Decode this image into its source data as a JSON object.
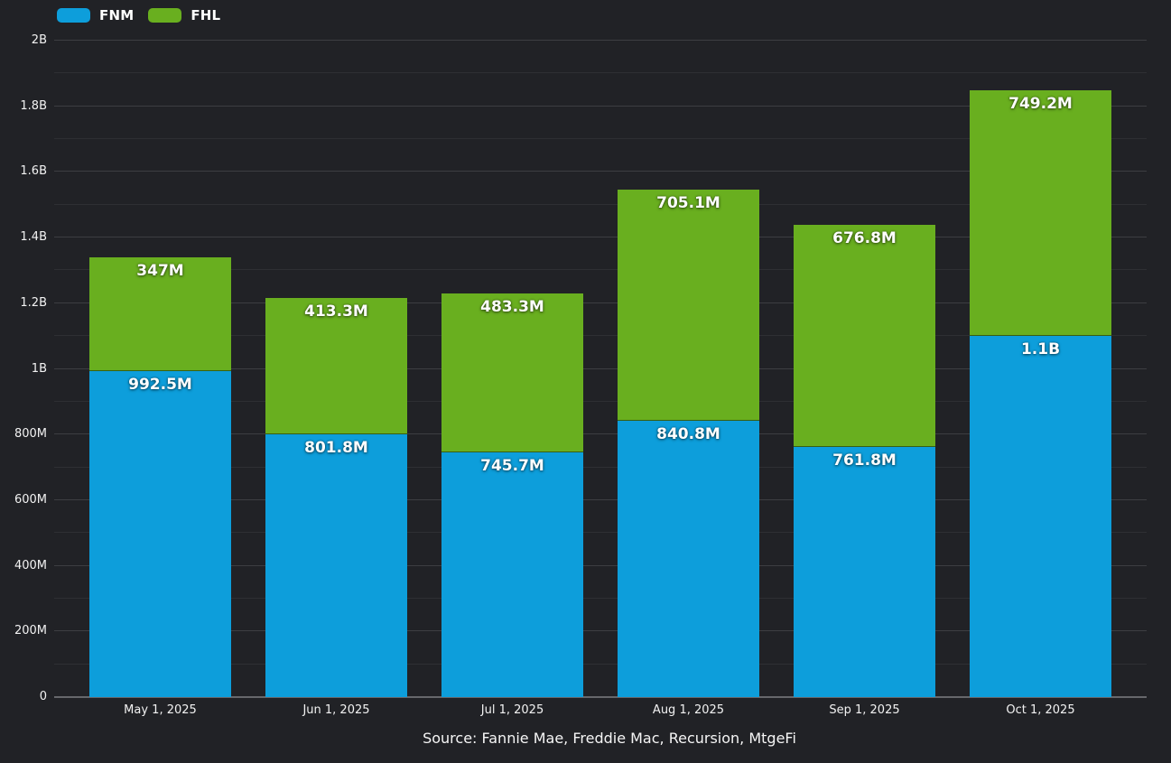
{
  "chart": {
    "background_color": "#212226",
    "legend": {
      "items": [
        {
          "label": "FNM",
          "color": "#0d9edb"
        },
        {
          "label": "FHL",
          "color": "#69af1f"
        }
      ]
    }
  },
  "chart_data": {
    "type": "bar",
    "stacked": true,
    "orientation": "vertical",
    "categories": [
      "May 1, 2025",
      "Jun 1, 2025",
      "Jul 1, 2025",
      "Aug 1, 2025",
      "Sep 1, 2025",
      "Oct 1, 2025"
    ],
    "series": [
      {
        "name": "FNM",
        "color": "#0d9edb",
        "values_millions": [
          992.5,
          801.8,
          745.7,
          840.8,
          761.8,
          1100
        ],
        "labels": [
          "992.5M",
          "801.8M",
          "745.7M",
          "840.8M",
          "761.8M",
          "1.1B"
        ]
      },
      {
        "name": "FHL",
        "color": "#69af1f",
        "values_millions": [
          347,
          413.3,
          483.3,
          705.1,
          676.8,
          749.2
        ],
        "labels": [
          "347M",
          "413.3M",
          "483.3M",
          "705.1M",
          "676.8M",
          "749.2M"
        ]
      }
    ],
    "title": "",
    "xlabel": "",
    "ylabel": "",
    "ylim_millions": [
      0,
      2000
    ],
    "y_minor_step_millions": 100,
    "y_ticks": [
      {
        "value": 0,
        "label": "0"
      },
      {
        "value": 200,
        "label": "200M"
      },
      {
        "value": 400,
        "label": "400M"
      },
      {
        "value": 600,
        "label": "600M"
      },
      {
        "value": 800,
        "label": "800M"
      },
      {
        "value": 1000,
        "label": "1B"
      },
      {
        "value": 1200,
        "label": "1.2B"
      },
      {
        "value": 1400,
        "label": "1.4B"
      },
      {
        "value": 1600,
        "label": "1.6B"
      },
      {
        "value": 1800,
        "label": "1.8B"
      },
      {
        "value": 2000,
        "label": "2B"
      }
    ],
    "grid": "horizontal",
    "legend_position": "top-left",
    "source": "Source: Fannie Mae, Freddie Mac, Recursion, MtgeFi"
  }
}
